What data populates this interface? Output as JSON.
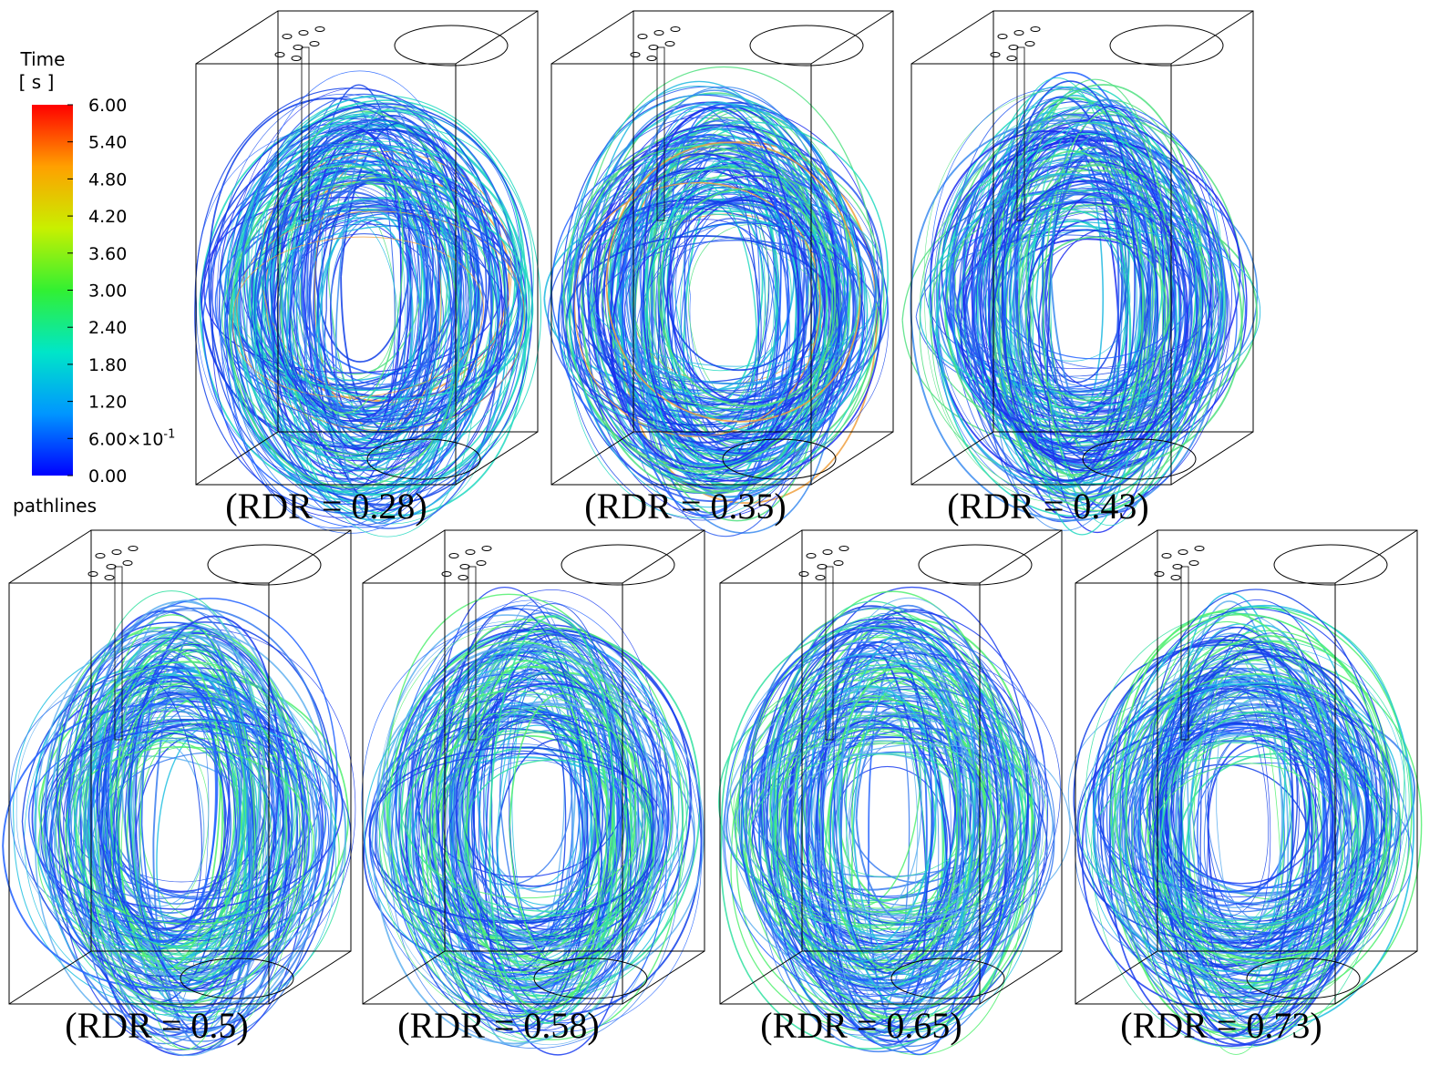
{
  "legend": {
    "title": "Time",
    "unit": "[ s ]",
    "caption": "pathlines",
    "lim": [
      0,
      6
    ],
    "colormap": [
      "#0000ff",
      "#0096ff",
      "#00e6c8",
      "#32f032",
      "#c8f000",
      "#ffa000",
      "#ff0000"
    ],
    "ticks": [
      {
        "value": 6,
        "label": "6.00"
      },
      {
        "value": 5.4,
        "label": "5.40"
      },
      {
        "value": 4.8,
        "label": "4.80"
      },
      {
        "value": 4.2,
        "label": "4.20"
      },
      {
        "value": 3.6,
        "label": "3.60"
      },
      {
        "value": 3,
        "label": "3.00"
      },
      {
        "value": 2.4,
        "label": "2.40"
      },
      {
        "value": 1.8,
        "label": "1.80"
      },
      {
        "value": 1.2,
        "label": "1.20"
      },
      {
        "value": 0.6,
        "label": "6.00×10",
        "label_sup": "-1"
      },
      {
        "value": 0,
        "label": "0.00"
      }
    ]
  },
  "panels": [
    {
      "caption": "(RDR = 0.28)"
    },
    {
      "caption": "(RDR = 0.35)"
    },
    {
      "caption": "(RDR = 0.43)"
    },
    {
      "caption": "(RDR = 0.5)"
    },
    {
      "caption": "(RDR = 0.58)"
    },
    {
      "caption": "(RDR = 0.65)"
    },
    {
      "caption": "(RDR = 0.73)"
    }
  ]
}
